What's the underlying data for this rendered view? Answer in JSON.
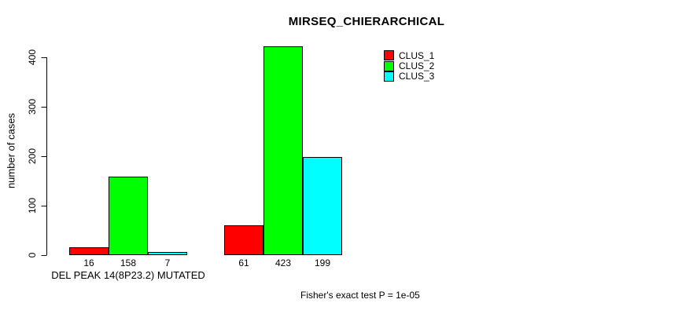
{
  "chart_data": {
    "type": "bar",
    "title": "MIRSEQ_CHIERARCHICAL",
    "ylabel": "number of cases",
    "ylim": [
      0,
      400
    ],
    "yticks": [
      0,
      100,
      200,
      300,
      400
    ],
    "grid": false,
    "legend_position": "top-right",
    "categories": [
      "DEL PEAK 14(8P23.2) MUTATED",
      ""
    ],
    "series": [
      {
        "name": "CLUS_1",
        "color": "#ff0000",
        "values": [
          16,
          61
        ]
      },
      {
        "name": "CLUS_2",
        "color": "#00ff00",
        "values": [
          158,
          423
        ]
      },
      {
        "name": "CLUS_3",
        "color": "#00ffff",
        "values": [
          7,
          199
        ]
      }
    ],
    "bar_value_labels": [
      [
        16,
        158,
        7
      ],
      [
        61,
        423,
        199
      ]
    ],
    "footnote": "Fisher's exact test P = 1e-05"
  }
}
